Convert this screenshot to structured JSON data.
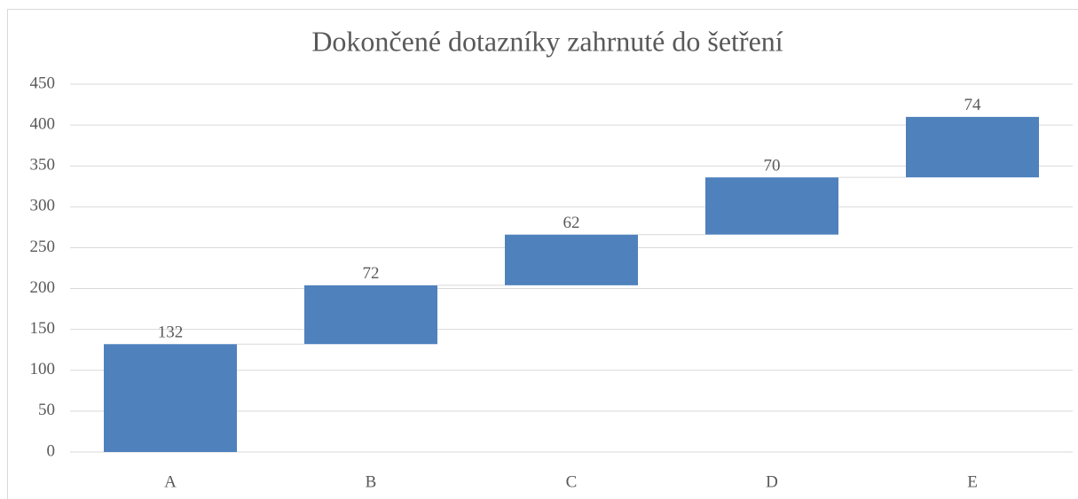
{
  "chart_data": {
    "type": "waterfall",
    "title": "Dokončené dotazníky zahrnuté do šetření",
    "categories": [
      "A",
      "B",
      "C",
      "D",
      "E"
    ],
    "values": [
      132,
      72,
      62,
      70,
      74
    ],
    "color": "#4f81bd",
    "ylim": [
      0,
      450
    ],
    "yticks": [
      0,
      50,
      100,
      150,
      200,
      250,
      300,
      350,
      400,
      450
    ],
    "grid": true
  }
}
